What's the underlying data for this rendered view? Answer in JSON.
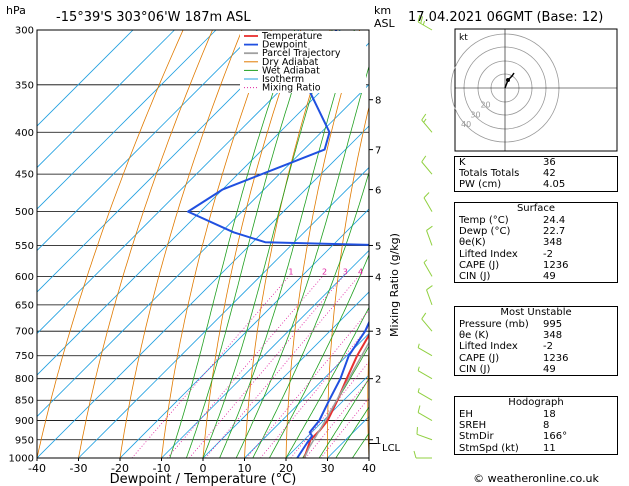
{
  "header": {
    "left_unit": "hPa",
    "location": "-15°39'S 303°06'W 187m ASL",
    "right_unit_top": "km",
    "right_unit_bottom": "ASL",
    "datetime": "17.04.2021 06GMT (Base: 12)"
  },
  "axes": {
    "xlabel": "Dewpoint / Temperature (°C)",
    "ylabel_right": "Mixing Ratio (g/kg)",
    "lcl_label": "LCL"
  },
  "legend": [
    "Temperature",
    "Dewpoint",
    "Parcel Trajectory",
    "Dry Adiabat",
    "Wet Adiabat",
    "Isotherm",
    "Mixing Ratio"
  ],
  "colors": {
    "temperature": "#e83030",
    "dewpoint": "#2050e0",
    "parcel": "#a0a0a0",
    "dry_adiabat": "#e07a00",
    "wet_adiabat": "#20a020",
    "isotherm": "#20a0e0",
    "mixing_ratio": "#e020a0",
    "wind": "#90d040"
  },
  "chart_data": {
    "type": "line",
    "title": "-15°39'S 303°06'W 187m ASL",
    "xlabel": "Dewpoint / Temperature (°C)",
    "ylabel": "hPa",
    "xlim": [
      -40,
      40
    ],
    "ylim": [
      1000,
      300
    ],
    "y_scale": "log",
    "x_ticks": [
      -40,
      -30,
      -20,
      -10,
      0,
      10,
      20,
      30,
      40
    ],
    "y_ticks": [
      300,
      350,
      400,
      450,
      500,
      550,
      600,
      650,
      700,
      750,
      800,
      850,
      900,
      950,
      1000
    ],
    "km_ticks": [
      {
        "p": 950,
        "label": "1"
      },
      {
        "p": 800,
        "label": "2"
      },
      {
        "p": 700,
        "label": "3"
      },
      {
        "p": 600,
        "label": "4"
      },
      {
        "p": 550,
        "label": "5"
      },
      {
        "p": 470,
        "label": "6"
      },
      {
        "p": 420,
        "label": "7"
      },
      {
        "p": 365,
        "label": "8"
      }
    ],
    "mixing_ratio_labels": [
      "1",
      "2",
      "3",
      "4",
      "8",
      "10",
      "16",
      "20",
      "25"
    ],
    "series": [
      {
        "name": "Temperature",
        "points": [
          [
            1000,
            24.4
          ],
          [
            950,
            21.5
          ],
          [
            925,
            21.5
          ],
          [
            900,
            21.0
          ],
          [
            850,
            18.5
          ],
          [
            800,
            15.5
          ],
          [
            750,
            12.5
          ],
          [
            700,
            10.0
          ],
          [
            650,
            6.0
          ],
          [
            600,
            2.0
          ],
          [
            560,
            -2.0
          ],
          [
            550,
            -4.0
          ],
          [
            540,
            -2.5
          ],
          [
            500,
            -6.0
          ],
          [
            450,
            -11.5
          ],
          [
            400,
            -18.0
          ],
          [
            350,
            -26.0
          ],
          [
            300,
            -34.5
          ]
        ]
      },
      {
        "name": "Dewpoint",
        "points": [
          [
            1000,
            22.7
          ],
          [
            960,
            21.5
          ],
          [
            940,
            21.0
          ],
          [
            930,
            19.5
          ],
          [
            900,
            19.0
          ],
          [
            850,
            16.5
          ],
          [
            800,
            14.0
          ],
          [
            750,
            10.5
          ],
          [
            700,
            8.5
          ],
          [
            650,
            5.0
          ],
          [
            600,
            1.0
          ],
          [
            560,
            -2.5
          ],
          [
            550,
            -5.0
          ],
          [
            545,
            -37.0
          ],
          [
            530,
            -47.0
          ],
          [
            500,
            -63.0
          ],
          [
            470,
            -60.0
          ],
          [
            420,
            -45.0
          ],
          [
            400,
            -48.0
          ],
          [
            350,
            -65.0
          ],
          [
            300,
            -71.0
          ]
        ]
      },
      {
        "name": "Parcel Trajectory",
        "points": [
          [
            1000,
            24.4
          ],
          [
            970,
            23.0
          ],
          [
            900,
            20.5
          ],
          [
            850,
            18.3
          ],
          [
            800,
            16.0
          ],
          [
            700,
            11.0
          ],
          [
            600,
            5.0
          ],
          [
            500,
            -2.5
          ],
          [
            400,
            -14.0
          ],
          [
            350,
            -20.0
          ],
          [
            300,
            -28.0
          ]
        ]
      }
    ],
    "wind_barbs": [
      {
        "p": 1000,
        "dir": 270,
        "kt": 10
      },
      {
        "p": 950,
        "dir": 290,
        "kt": 10
      },
      {
        "p": 900,
        "dir": 300,
        "kt": 10
      },
      {
        "p": 850,
        "dir": 300,
        "kt": 5
      },
      {
        "p": 800,
        "dir": 300,
        "kt": 5
      },
      {
        "p": 750,
        "dir": 300,
        "kt": 5
      },
      {
        "p": 700,
        "dir": 320,
        "kt": 10
      },
      {
        "p": 650,
        "dir": 340,
        "kt": 10
      },
      {
        "p": 600,
        "dir": 330,
        "kt": 5
      },
      {
        "p": 550,
        "dir": 340,
        "kt": 10
      },
      {
        "p": 500,
        "dir": 330,
        "kt": 10
      },
      {
        "p": 450,
        "dir": 320,
        "kt": 10
      },
      {
        "p": 400,
        "dir": 320,
        "kt": 15
      },
      {
        "p": 300,
        "dir": 300,
        "kt": 25
      }
    ]
  },
  "hodograph": {
    "label": "kt",
    "ring_labels": [
      "10",
      "20",
      "30",
      "40"
    ]
  },
  "indices": {
    "rows": [
      {
        "k": "K",
        "v": "36"
      },
      {
        "k": "Totals Totals",
        "v": "42"
      },
      {
        "k": "PW (cm)",
        "v": "4.05"
      }
    ]
  },
  "surface": {
    "title": "Surface",
    "rows": [
      {
        "k": "Temp (°C)",
        "v": "24.4"
      },
      {
        "k": "Dewp (°C)",
        "v": "22.7"
      },
      {
        "k": "θe(K)",
        "v": "348"
      },
      {
        "k": "Lifted Index",
        "v": "-2"
      },
      {
        "k": "CAPE (J)",
        "v": "1236"
      },
      {
        "k": "CIN (J)",
        "v": "49"
      }
    ]
  },
  "most_unstable": {
    "title": "Most Unstable",
    "rows": [
      {
        "k": "Pressure (mb)",
        "v": "995"
      },
      {
        "k": "θe (K)",
        "v": "348"
      },
      {
        "k": "Lifted Index",
        "v": "-2"
      },
      {
        "k": "CAPE (J)",
        "v": "1236"
      },
      {
        "k": "CIN (J)",
        "v": "49"
      }
    ]
  },
  "hodograph_table": {
    "title": "Hodograph",
    "rows": [
      {
        "k": "EH",
        "v": "18"
      },
      {
        "k": "SREH",
        "v": "8"
      },
      {
        "k": "StmDir",
        "v": "166°"
      },
      {
        "k": "StmSpd (kt)",
        "v": "11"
      }
    ]
  },
  "footer": {
    "copyright": "© weatheronline.co.uk"
  }
}
